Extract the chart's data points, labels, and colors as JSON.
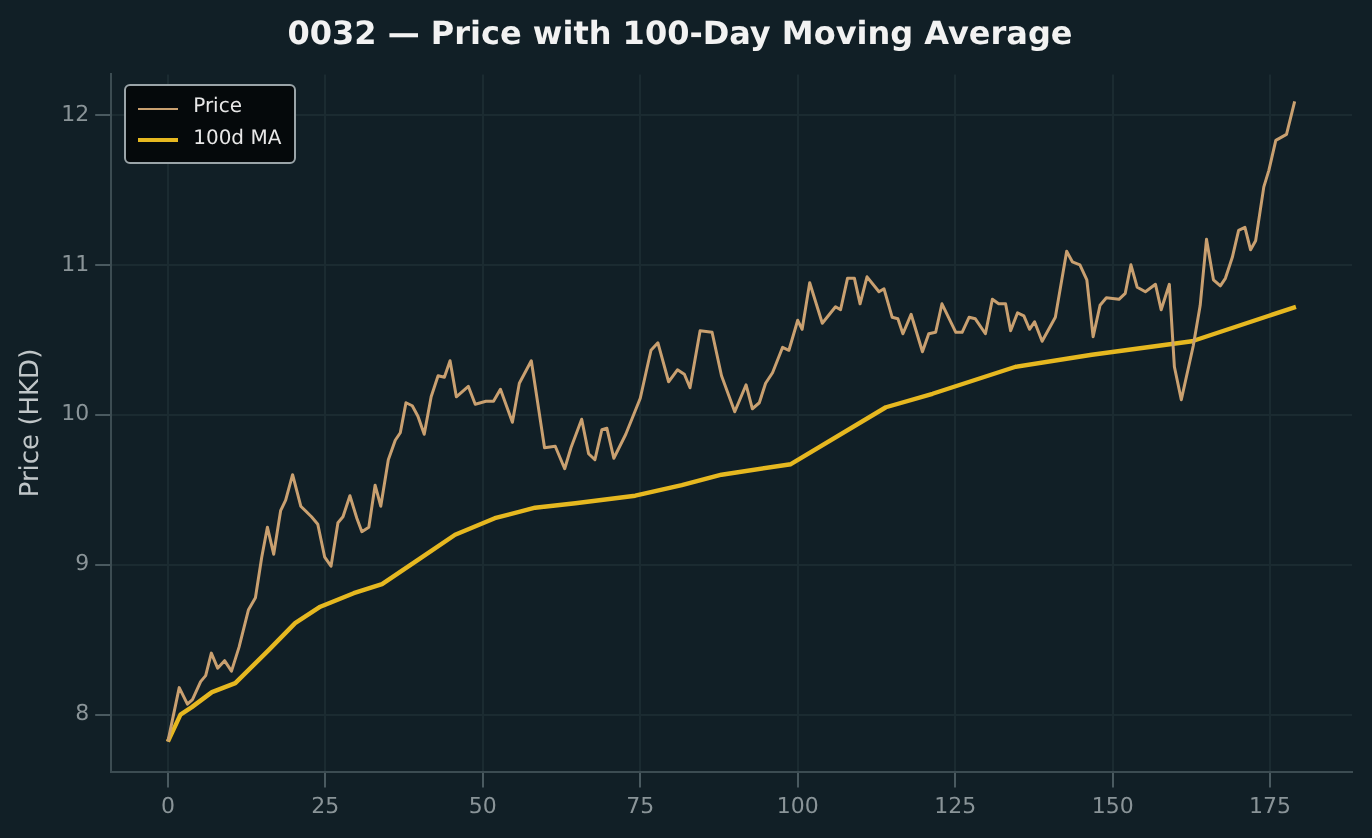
{
  "chart_data": {
    "type": "line",
    "title": "0032 — Price with 100-Day Moving Average",
    "ylabel": "Price (HKD)",
    "xlim": [
      -9,
      188
    ],
    "ylim": [
      7.62,
      12.27
    ],
    "xticks": [
      0,
      25,
      50,
      75,
      100,
      125,
      150,
      175
    ],
    "yticks": [
      8,
      9,
      10,
      11,
      12
    ],
    "grid": true,
    "legend": "top left",
    "marker": "none",
    "line_style": "solid",
    "series": [
      {
        "name": "Price",
        "color": "#c9a070",
        "x": [
          0,
          1.8,
          3.1,
          3.9,
          5.2,
          6,
          6.9,
          7.9,
          9,
          10.1,
          11.3,
          12.8,
          13.9,
          14.9,
          15.8,
          16.8,
          17.9,
          18.7,
          19.8,
          21.1,
          22.8,
          23.8,
          24.9,
          25.9,
          27,
          27.8,
          28.9,
          30,
          30.8,
          31.9,
          32.9,
          33.8,
          35,
          36.1,
          36.9,
          37.8,
          38.8,
          39.7,
          40.7,
          41.8,
          42.9,
          43.9,
          44.8,
          45.8,
          47.7,
          48.8,
          50.5,
          51.7,
          52.8,
          54.7,
          55.8,
          57.7,
          59.8,
          61.5,
          63,
          64,
          65.7,
          66.8,
          67.8,
          68.9,
          69.7,
          70.8,
          72.7,
          75,
          76.7,
          77.8,
          79.5,
          80.9,
          82,
          82.9,
          84.5,
          86.4,
          87.9,
          90,
          91.8,
          92.8,
          93.9,
          94.9,
          96,
          97.6,
          98.6,
          100,
          100.7,
          101.9,
          103.9,
          106,
          106.8,
          107.9,
          109,
          109.9,
          111,
          112.9,
          113.7,
          115,
          115.9,
          116.7,
          118,
          119.8,
          120.8,
          121.9,
          122.9,
          125.1,
          126.1,
          127.2,
          128.2,
          129.8,
          130.9,
          131.9,
          133,
          133.8,
          134.9,
          135.9,
          136.8,
          137.6,
          138.8,
          140.9,
          142.7,
          143.6,
          144.8,
          145.9,
          146.9,
          148,
          149,
          151,
          152,
          152.9,
          153.9,
          155.2,
          156.8,
          157.7,
          159,
          159.8,
          160.9,
          162.8,
          163.9,
          164.9,
          166,
          167.1,
          167.9,
          169,
          170,
          171,
          171.9,
          172.7,
          174,
          174.8,
          175.9,
          177.6,
          178.9
        ],
        "values": [
          7.82,
          8.18,
          8.07,
          8.1,
          8.22,
          8.26,
          8.41,
          8.31,
          8.36,
          8.29,
          8.45,
          8.7,
          8.78,
          9.05,
          9.25,
          9.07,
          9.36,
          9.43,
          9.6,
          9.39,
          9.32,
          9.27,
          9.05,
          8.99,
          9.28,
          9.32,
          9.46,
          9.31,
          9.22,
          9.25,
          9.53,
          9.39,
          9.7,
          9.83,
          9.88,
          10.08,
          10.06,
          9.99,
          9.87,
          10.12,
          10.26,
          10.25,
          10.36,
          10.12,
          10.19,
          10.07,
          10.09,
          10.09,
          10.17,
          9.95,
          10.21,
          10.36,
          9.78,
          9.79,
          9.64,
          9.78,
          9.97,
          9.74,
          9.7,
          9.9,
          9.91,
          9.71,
          9.87,
          10.11,
          10.43,
          10.48,
          10.22,
          10.3,
          10.27,
          10.18,
          10.56,
          10.55,
          10.26,
          10.02,
          10.2,
          10.04,
          10.08,
          10.21,
          10.28,
          10.45,
          10.43,
          10.63,
          10.57,
          10.88,
          10.61,
          10.72,
          10.7,
          10.91,
          10.91,
          10.74,
          10.92,
          10.82,
          10.84,
          10.65,
          10.64,
          10.54,
          10.67,
          10.42,
          10.54,
          10.55,
          10.74,
          10.55,
          10.55,
          10.65,
          10.64,
          10.54,
          10.77,
          10.74,
          10.74,
          10.56,
          10.68,
          10.66,
          10.57,
          10.62,
          10.49,
          10.65,
          11.09,
          11.02,
          11,
          10.9,
          10.52,
          10.73,
          10.78,
          10.77,
          10.81,
          11,
          10.85,
          10.82,
          10.87,
          10.7,
          10.87,
          10.32,
          10.1,
          10.46,
          10.73,
          11.17,
          10.9,
          10.86,
          10.91,
          11.05,
          11.23,
          11.25,
          11.1,
          11.16,
          11.52,
          11.63,
          11.83,
          11.87,
          12.09
        ]
      },
      {
        "name": "100d MA",
        "color": "#e6b820",
        "x": [
          0,
          2,
          3.8,
          7,
          10.7,
          16,
          20.2,
          24.2,
          29.5,
          34,
          39.3,
          45.6,
          51.9,
          58.3,
          64.7,
          74.2,
          81.6,
          87.9,
          98.9,
          114,
          121.4,
          134.6,
          146.7,
          162.6,
          179.1
        ],
        "values": [
          7.82,
          8,
          8.05,
          8.15,
          8.21,
          8.43,
          8.61,
          8.72,
          8.81,
          8.87,
          9.02,
          9.2,
          9.31,
          9.38,
          9.41,
          9.46,
          9.53,
          9.6,
          9.67,
          10.05,
          10.14,
          10.32,
          10.4,
          10.49,
          10.72
        ]
      }
    ]
  }
}
